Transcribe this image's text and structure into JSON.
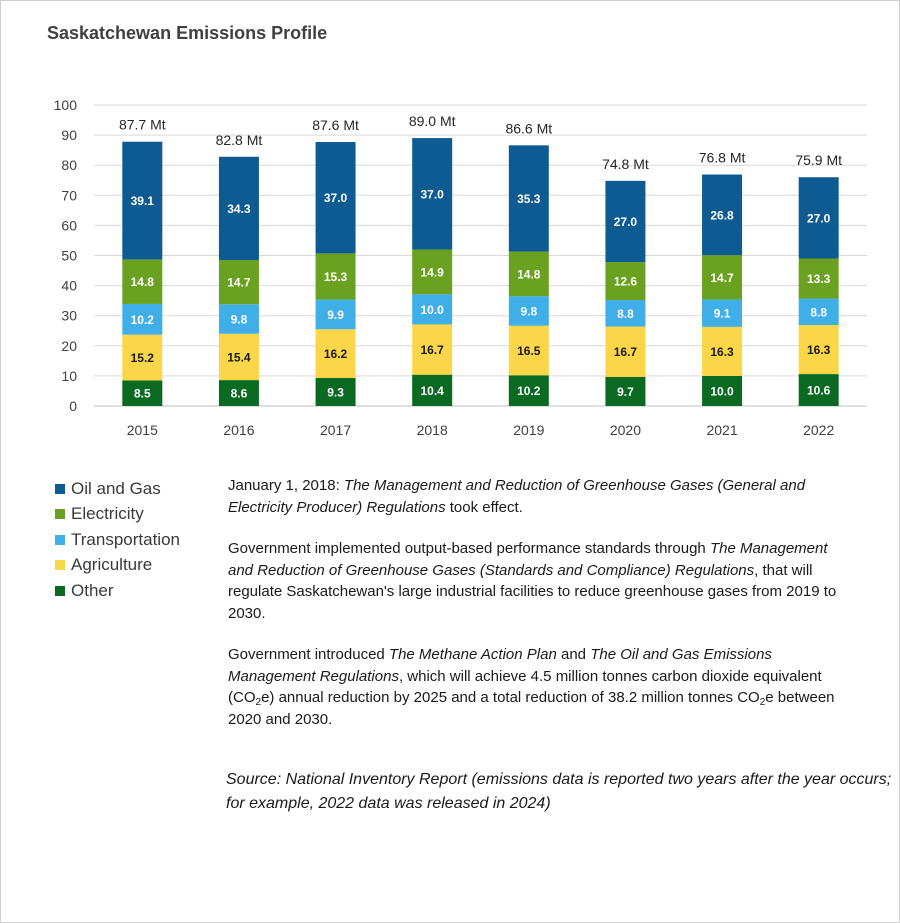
{
  "title": "Saskatchewan Emissions Profile",
  "colors": {
    "Oil and Gas": "#0e5b92",
    "Electricity": "#6ba120",
    "Transportation": "#40aee7",
    "Agriculture": "#fbd649",
    "Other": "#0b6a22"
  },
  "chart_data": {
    "type": "bar",
    "stacked": true,
    "categories": [
      "2015",
      "2016",
      "2017",
      "2018",
      "2019",
      "2020",
      "2021",
      "2022"
    ],
    "ylim": [
      0,
      100
    ],
    "yticks": [
      "0",
      "10",
      "20",
      "30",
      "40",
      "50",
      "60",
      "70",
      "80",
      "90",
      "100"
    ],
    "grid": true,
    "legend_position": "bottom-left",
    "totals": [
      "87.7 Mt",
      "82.8 Mt",
      "87.6 Mt",
      "89.0 Mt",
      "86.6 Mt",
      "74.8 Mt",
      "76.8 Mt",
      "75.9 Mt"
    ],
    "series": [
      {
        "name": "Other",
        "values": [
          8.5,
          8.6,
          9.3,
          10.4,
          10.2,
          9.7,
          10.0,
          10.6
        ],
        "labels": [
          "8.5",
          "8.6",
          "9.3",
          "10.4",
          "10.2",
          "9.7",
          "10.0",
          "10.6"
        ]
      },
      {
        "name": "Agriculture",
        "values": [
          15.2,
          15.4,
          16.2,
          16.7,
          16.5,
          16.7,
          16.3,
          16.3
        ],
        "labels": [
          "15.2",
          "15.4",
          "16.2",
          "16.7",
          "16.5",
          "16.7",
          "16.3",
          "16.3"
        ]
      },
      {
        "name": "Transportation",
        "values": [
          10.2,
          9.8,
          9.9,
          10.0,
          9.8,
          8.8,
          9.1,
          8.8
        ],
        "labels": [
          "10.2",
          "9.8",
          "9.9",
          "10.0",
          "9.8",
          "8.8",
          "9.1",
          "8.8"
        ]
      },
      {
        "name": "Electricity",
        "values": [
          14.8,
          14.7,
          15.3,
          14.9,
          14.8,
          12.6,
          14.7,
          13.3
        ],
        "labels": [
          "14.8",
          "14.7",
          "15.3",
          "14.9",
          "14.8",
          "12.6",
          "14.7",
          "13.3"
        ]
      },
      {
        "name": "Oil and Gas",
        "values": [
          39.1,
          34.3,
          37.0,
          37.0,
          35.3,
          27.0,
          26.8,
          27.0
        ],
        "labels": [
          "39.1",
          "34.3",
          "37.0",
          "37.0",
          "35.3",
          "27.0",
          "26.8",
          "27.0"
        ]
      }
    ]
  },
  "legend": [
    "Oil and Gas",
    "Electricity",
    "Transportation",
    "Agriculture",
    "Other"
  ],
  "notes": {
    "p1_a": "January 1, 2018: ",
    "p1_b": "The Management and Reduction of Greenhouse Gases (General and Electricity Producer) Regulations",
    "p1_c": " took effect.",
    "p2_a": "Government implemented output-based performance standards through ",
    "p2_b": "The Management and Reduction of Greenhouse Gases (Standards and Compliance) Regulations",
    "p2_c": ", that will regulate Saskatchewan's large industrial facilities to reduce greenhouse gases from 2019 to 2030.",
    "p3_a": "Government introduced ",
    "p3_b": "The Methane Action Plan",
    "p3_c": " and ",
    "p3_d": "The Oil and Gas Emissions Management Regulations",
    "p3_e": ", which will achieve 4.5 million tonnes carbon dioxide equivalent (CO",
    "p3_sub1": "2",
    "p3_f": "e) annual reduction by 2025 and a total reduction of 38.2 million tonnes CO",
    "p3_sub2": "2",
    "p3_g": "e between 2020 and 2030."
  },
  "source": "Source: National Inventory Report (emissions data is reported two years after the year occurs; for example, 2022 data was released in 2024)"
}
